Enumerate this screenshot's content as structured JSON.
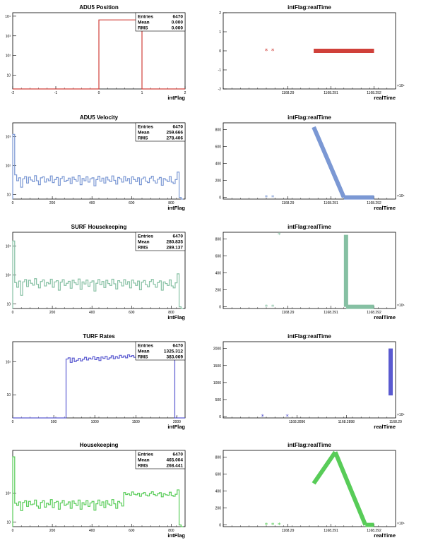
{
  "chart_data": [
    {
      "type": "histogram",
      "title": "ADU5 Position",
      "xlabel": "intFlag",
      "logy": true,
      "xlim": [
        -2,
        2
      ],
      "ylim": [
        2,
        15000
      ],
      "color": "#d0403a",
      "xticks": [
        "-2",
        "-1",
        "0",
        "1",
        "2"
      ],
      "yticks": [
        "10",
        "10²",
        "10³",
        "10⁴"
      ],
      "stats": {
        "entries_label": "Entries",
        "entries": "6470",
        "mean_label": "Mean",
        "mean": "0.000",
        "rms_label": "RMS",
        "rms": "0.000"
      },
      "bins": [
        {
          "x0": -2,
          "x1": 0,
          "y": 2
        },
        {
          "x0": 0,
          "x1": 1,
          "y": 6470
        },
        {
          "x0": 1,
          "x1": 2,
          "y": 2
        }
      ]
    },
    {
      "type": "scatter",
      "title": "intFlag:realTime",
      "xlabel": "realTime",
      "xlim": [
        1168.2885,
        1168.2925
      ],
      "ylim": [
        -2,
        2
      ],
      "color": "#d0403a",
      "xticks": [
        "1168.29",
        "1168.291",
        "1168.292"
      ],
      "yticks": [
        "-2",
        "-1",
        "0",
        "1",
        "2"
      ],
      "exponent": "×10⁶",
      "points": [
        [
          1168.2895,
          0
        ],
        [
          1168.28965,
          0
        ]
      ],
      "bands": [
        [
          1168.2906,
          0,
          1168.292,
          0
        ]
      ]
    },
    {
      "type": "histogram",
      "title": "ADU5 Velocity",
      "xlabel": "intFlag",
      "logy": true,
      "xlim": [
        0,
        870
      ],
      "ylim": [
        7,
        3000
      ],
      "color": "#7b98d4",
      "xticks": [
        "0",
        "200",
        "400",
        "600",
        "800"
      ],
      "yticks": [
        "10",
        "10²",
        "10³"
      ],
      "stats": {
        "entries_label": "Entries",
        "entries": "6470",
        "mean_label": "Mean",
        "mean": "259.666",
        "rms_label": "RMS",
        "rms": "278.406"
      },
      "bins_start": 0,
      "bin_width": 10,
      "counts": [
        1200,
        48,
        30,
        38,
        18,
        35,
        42,
        25,
        40,
        32,
        28,
        45,
        30,
        22,
        38,
        41,
        27,
        35,
        30,
        44,
        26,
        33,
        39,
        21,
        36,
        42,
        28,
        31,
        37,
        24,
        40,
        33,
        29,
        45,
        22,
        36,
        30,
        41,
        27,
        35,
        38,
        20,
        33,
        43,
        29,
        37,
        25,
        40,
        32,
        28,
        44,
        31,
        23,
        39,
        35,
        27,
        42,
        30,
        36,
        24,
        41,
        33,
        28,
        38,
        22,
        35,
        40,
        29,
        26,
        37,
        43,
        30,
        25,
        34,
        39,
        21,
        36,
        32,
        28,
        42,
        27,
        24,
        33,
        60,
        8,
        4
      ]
    },
    {
      "type": "scatter",
      "title": "intFlag:realTime",
      "xlabel": "realTime",
      "xlim": [
        1168.2885,
        1168.2925
      ],
      "ylim": [
        -20,
        880
      ],
      "color": "#7b98d4",
      "xticks": [
        "1168.29",
        "1168.291",
        "1168.292"
      ],
      "yticks": [
        "0",
        "200",
        "400",
        "600",
        "800"
      ],
      "exponent": "×10⁶",
      "points": [
        [
          1168.2895,
          0
        ],
        [
          1168.28965,
          0
        ]
      ],
      "bands": [
        [
          1168.2906,
          830,
          1168.2913,
          0
        ],
        [
          1168.2913,
          0,
          1168.292,
          0
        ]
      ]
    },
    {
      "type": "histogram",
      "title": "SURF Housekeeping",
      "xlabel": "intFlag",
      "logy": true,
      "xlim": [
        0,
        870
      ],
      "ylim": [
        7,
        3000
      ],
      "color": "#86c0a3",
      "xticks": [
        "0",
        "200",
        "400",
        "600",
        "800"
      ],
      "yticks": [
        "10",
        "10²",
        "10³"
      ],
      "stats": {
        "entries_label": "Entries",
        "entries": "6470",
        "mean_label": "Mean",
        "mean": "280.835",
        "rms_label": "RMS",
        "rms": "289.137"
      },
      "bins_start": 0,
      "bin_width": 10,
      "counts": [
        1500,
        55,
        38,
        62,
        20,
        58,
        70,
        40,
        66,
        52,
        45,
        75,
        48,
        36,
        60,
        68,
        42,
        55,
        50,
        72,
        38,
        58,
        64,
        30,
        57,
        69,
        44,
        52,
        61,
        35,
        66,
        54,
        46,
        73,
        32,
        58,
        49,
        67,
        41,
        56,
        63,
        28,
        52,
        70,
        46,
        60,
        37,
        66,
        51,
        44,
        72,
        50,
        33,
        64,
        56,
        42,
        69,
        48,
        59,
        36,
        67,
        53,
        44,
        62,
        31,
        57,
        65,
        46,
        39,
        60,
        71,
        48,
        38,
        55,
        63,
        30,
        58,
        51,
        44,
        68,
        42,
        36,
        54,
        110,
        8,
        4
      ]
    },
    {
      "type": "scatter",
      "title": "intFlag:realTime",
      "xlabel": "realTime",
      "xlim": [
        1168.2885,
        1168.2925
      ],
      "ylim": [
        -20,
        880
      ],
      "color": "#86c0a3",
      "xticks": [
        "1168.29",
        "1168.291",
        "1168.292"
      ],
      "yticks": [
        "0",
        "200",
        "400",
        "600",
        "800"
      ],
      "exponent": "×10⁶",
      "points": [
        [
          1168.2895,
          0
        ],
        [
          1168.28965,
          0
        ],
        [
          1168.2898,
          850
        ]
      ],
      "bands": [
        [
          1168.29135,
          850,
          1168.29135,
          0
        ],
        [
          1168.29135,
          0,
          1168.292,
          0
        ]
      ]
    },
    {
      "type": "histogram",
      "title": "TURF Rates",
      "xlabel": "intFlag",
      "logy": true,
      "xlim": [
        0,
        2100
      ],
      "ylim": [
        2,
        400
      ],
      "color": "#5a5ad0",
      "xticks": [
        "0",
        "500",
        "1000",
        "1500",
        "2000"
      ],
      "yticks": [
        "10",
        "10²"
      ],
      "stats": {
        "entries_label": "Entries",
        "entries": "6470",
        "mean_label": "Mean",
        "mean": "1325.312",
        "rms_label": "RMS",
        "rms": "383.069"
      },
      "bins_start": 0,
      "bin_width": 25,
      "counts": [
        2,
        2,
        2,
        2,
        2,
        2,
        2,
        2,
        2,
        2,
        2,
        2,
        2,
        2,
        2,
        2,
        2,
        2,
        2,
        2,
        2,
        2,
        2,
        2,
        2,
        2,
        120,
        130,
        95,
        128,
        100,
        110,
        125,
        105,
        118,
        135,
        112,
        128,
        120,
        140,
        115,
        132,
        108,
        138,
        125,
        145,
        118,
        130,
        150,
        122,
        142,
        128,
        155,
        135,
        148,
        130,
        160,
        140,
        152,
        135,
        165,
        145,
        138,
        158,
        150,
        168,
        142,
        160,
        155,
        148,
        172,
        158,
        150,
        165,
        160,
        175,
        155,
        168,
        162,
        2,
        2,
        2,
        2,
        2
      ]
    },
    {
      "type": "scatter",
      "title": "intFlag:realTime",
      "xlabel": "realTime",
      "xlim": [
        1168.2893,
        1168.29
      ],
      "ylim": [
        -40,
        2200
      ],
      "color": "#5a5ad0",
      "xticks": [
        "1168.2896",
        "1168.2898",
        "1168.29"
      ],
      "yticks": [
        "0",
        "500",
        "1000",
        "1500",
        "2000"
      ],
      "exponent": "×10⁶",
      "points": [
        [
          1168.28946,
          0
        ],
        [
          1168.28956,
          0
        ]
      ],
      "bands": [
        [
          1168.28998,
          2000,
          1168.28998,
          620
        ]
      ]
    },
    {
      "type": "histogram",
      "title": "Housekeeping",
      "xlabel": "intFlag",
      "logy": true,
      "xlim": [
        0,
        870
      ],
      "ylim": [
        7,
        3000
      ],
      "color": "#58cc58",
      "xticks": [
        "0",
        "200",
        "400",
        "600",
        "800"
      ],
      "yticks": [
        "10",
        "10²"
      ],
      "stats": {
        "entries_label": "Entries",
        "entries": "6470",
        "mean_label": "Mean",
        "mean": "465.004",
        "rms_label": "RMS",
        "rms": "268.441"
      },
      "bins_start": 0,
      "bin_width": 10,
      "counts": [
        1800,
        45,
        38,
        50,
        25,
        48,
        55,
        35,
        52,
        40,
        42,
        58,
        36,
        30,
        48,
        55,
        33,
        45,
        40,
        60,
        32,
        48,
        52,
        28,
        46,
        56,
        38,
        42,
        50,
        30,
        54,
        44,
        38,
        58,
        28,
        47,
        40,
        55,
        35,
        46,
        52,
        26,
        43,
        58,
        38,
        50,
        32,
        55,
        42,
        38,
        60,
        43,
        30,
        52,
        46,
        36,
        105,
        90,
        95,
        85,
        110,
        92,
        88,
        100,
        78,
        95,
        105,
        86,
        80,
        98,
        112,
        90,
        82,
        95,
        104,
        75,
        96,
        88,
        85,
        108,
        84,
        78,
        92,
        130,
        8,
        4
      ]
    },
    {
      "type": "scatter",
      "title": "intFlag:realTime",
      "xlabel": "realTime",
      "xlim": [
        1168.2885,
        1168.2925
      ],
      "ylim": [
        -20,
        880
      ],
      "color": "#58cc58",
      "xticks": [
        "1168.29",
        "1168.291",
        "1168.292"
      ],
      "yticks": [
        "0",
        "200",
        "400",
        "600",
        "800"
      ],
      "exponent": "×10⁶",
      "points": [
        [
          1168.2895,
          0
        ],
        [
          1168.28965,
          0
        ],
        [
          1168.2898,
          0
        ]
      ],
      "bands": [
        [
          1168.2906,
          490,
          1168.2911,
          860
        ],
        [
          1168.2911,
          860,
          1168.2918,
          0
        ],
        [
          1168.2918,
          0,
          1168.292,
          0
        ]
      ]
    }
  ]
}
